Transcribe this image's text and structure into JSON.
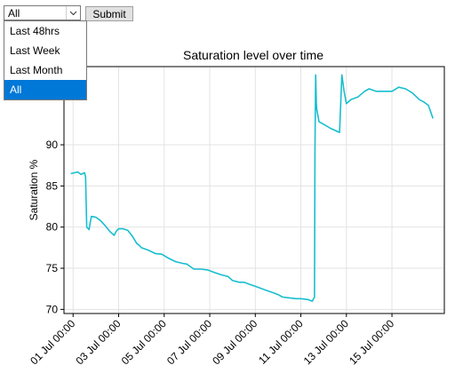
{
  "filter": {
    "selected": "All",
    "options": [
      "Last 48hrs",
      "Last Week",
      "Last Month",
      "All"
    ],
    "submit_label": "Submit"
  },
  "chart_data": {
    "type": "line",
    "title": "Saturation level over time",
    "ylabel": "Saturation %",
    "xlabel": "",
    "ylim": [
      69.5,
      99.5
    ],
    "xlim": [
      -0.4,
      16.3
    ],
    "grid": true,
    "line_color": "#17becf",
    "y_ticks": [
      70,
      75,
      80,
      85,
      90
    ],
    "x_ticks": [
      {
        "value": 0,
        "label": "01 Jul 00:00"
      },
      {
        "value": 2,
        "label": "03 Jul 00:00"
      },
      {
        "value": 4,
        "label": "05 Jul 00:00"
      },
      {
        "value": 6,
        "label": "07 Jul 00:00"
      },
      {
        "value": 8,
        "label": "09 Jul 00:00"
      },
      {
        "value": 10,
        "label": "11 Jul 00:00"
      },
      {
        "value": 12,
        "label": "13 Jul 00:00"
      },
      {
        "value": 14,
        "label": "15 Jul 00:00"
      }
    ],
    "series": [
      {
        "name": "",
        "x_days": [
          -0.1,
          0.2,
          0.35,
          0.5,
          0.55,
          0.6,
          0.7,
          0.75,
          0.8,
          1.0,
          1.2,
          1.4,
          1.6,
          1.8,
          1.9,
          2.0,
          2.2,
          2.4,
          2.6,
          2.8,
          2.9,
          3.0,
          3.3,
          3.6,
          3.9,
          4.2,
          4.5,
          4.8,
          5.0,
          5.3,
          5.6,
          5.9,
          6.2,
          6.5,
          6.8,
          7.0,
          7.3,
          7.5,
          7.8,
          8.0,
          8.2,
          8.5,
          8.8,
          9.0,
          9.2,
          9.5,
          9.8,
          10.0,
          10.3,
          10.5,
          10.6,
          10.62,
          10.65,
          10.68,
          10.7,
          10.75,
          10.8,
          11.0,
          11.3,
          11.7,
          11.8,
          11.9,
          12.0,
          12.2,
          12.5,
          12.8,
          13.0,
          13.3,
          13.6,
          14.0,
          14.3,
          14.6,
          14.9,
          15.2,
          15.4,
          15.6,
          15.8
        ],
        "y": [
          86.5,
          86.7,
          86.4,
          86.6,
          86.1,
          80.0,
          79.7,
          80.5,
          81.3,
          81.2,
          80.8,
          80.2,
          79.5,
          79.0,
          79.5,
          79.8,
          79.8,
          79.6,
          78.9,
          78.0,
          77.8,
          77.5,
          77.2,
          76.8,
          76.7,
          76.2,
          75.8,
          75.6,
          75.5,
          74.9,
          74.9,
          74.8,
          74.5,
          74.2,
          74.0,
          73.5,
          73.3,
          73.3,
          73.0,
          72.8,
          72.6,
          72.3,
          72.0,
          71.8,
          71.5,
          71.4,
          71.3,
          71.3,
          71.2,
          71.0,
          71.5,
          89.0,
          98.5,
          95.0,
          94.3,
          93.5,
          92.8,
          92.5,
          92.0,
          91.5,
          98.5,
          96.5,
          95.0,
          95.5,
          95.8,
          96.5,
          96.8,
          96.5,
          96.5,
          96.5,
          97.0,
          96.8,
          96.3,
          95.5,
          95.2,
          94.8,
          93.2
        ]
      }
    ]
  }
}
